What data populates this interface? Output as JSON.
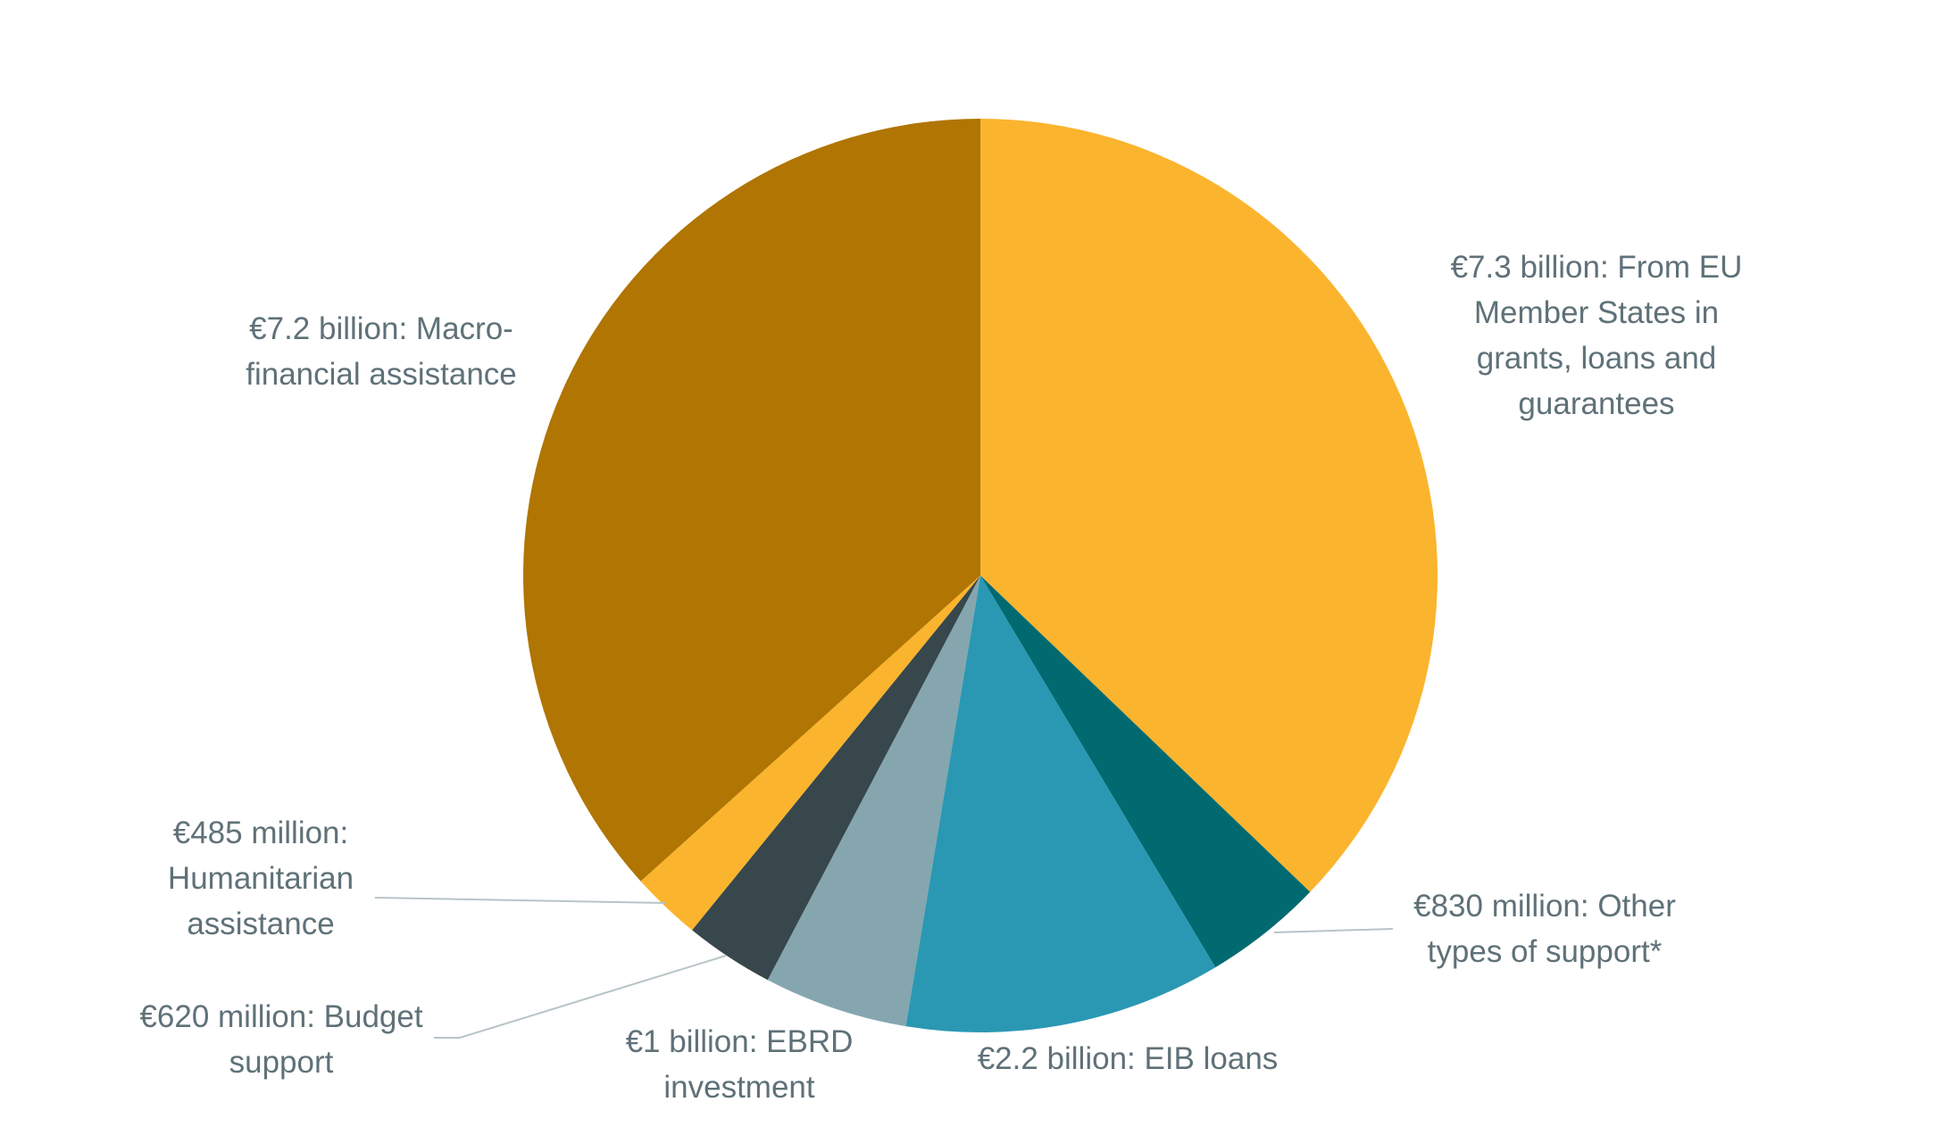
{
  "chart_data": {
    "type": "pie",
    "start": "12 o'clock",
    "direction": "clockwise",
    "slices": [
      {
        "lines": [
          "€7.3 billion: From EU",
          "Member States in",
          "grants, loans and",
          "guarantees"
        ],
        "value": 7300,
        "color": "#fbb42d"
      },
      {
        "lines": [
          "€830 million: Other",
          "types of support*"
        ],
        "value": 830,
        "color": "#006a70"
      },
      {
        "lines": [
          "€2.2 billion: EIB loans"
        ],
        "value": 2200,
        "color": "#2a98b3"
      },
      {
        "lines": [
          "€1 billion: EBRD",
          "investment"
        ],
        "value": 1000,
        "color": "#85a6ae"
      },
      {
        "lines": [
          "€620 million: Budget",
          "support"
        ],
        "value": 620,
        "color": "#37474c"
      },
      {
        "lines": [
          "€485 million:",
          "Humanitarian",
          "assistance"
        ],
        "value": 485,
        "color": "#fbb42d"
      },
      {
        "lines": [
          "€7.2 billion: Macro-",
          "financial assistance"
        ],
        "value": 7200,
        "color": "#b07502"
      }
    ],
    "units": "EUR million",
    "label_color": "#5f7178",
    "leader_line_color": "#b8c4c8"
  }
}
